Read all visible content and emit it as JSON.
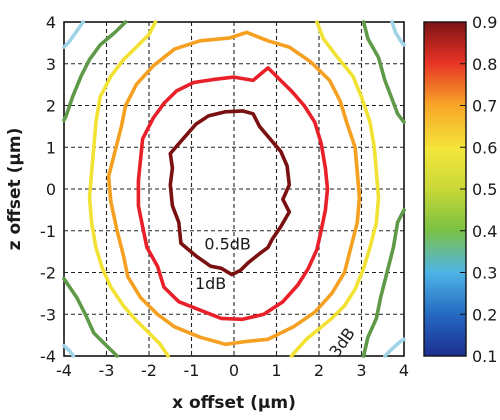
{
  "chart_data": {
    "type": "contour",
    "xlabel": "x offset (µm)",
    "ylabel": "z offset (µm)",
    "xlim": [
      -4,
      4
    ],
    "ylim": [
      -4,
      4
    ],
    "xticks": [
      -4,
      -3,
      -2,
      -1,
      0,
      1,
      2,
      3,
      4
    ],
    "yticks": [
      -4,
      -3,
      -2,
      -1,
      0,
      1,
      2,
      3,
      4
    ],
    "grid": "dashed",
    "colorbar": {
      "min": 0.1,
      "max": 0.9,
      "ticks": [
        0.1,
        0.2,
        0.3,
        0.4,
        0.5,
        0.6,
        0.7,
        0.8,
        0.9
      ],
      "colormap": "jet"
    },
    "contours": [
      {
        "level": 0.89,
        "color": "#7a1010",
        "points": [
          [
            -0.2,
            1.85
          ],
          [
            0.2,
            1.87
          ],
          [
            0.45,
            1.8
          ],
          [
            0.6,
            1.5
          ],
          [
            0.85,
            1.2
          ],
          [
            1.1,
            0.9
          ],
          [
            1.25,
            0.55
          ],
          [
            1.3,
            0.1
          ],
          [
            1.15,
            -0.25
          ],
          [
            1.3,
            -0.55
          ],
          [
            1.1,
            -0.9
          ],
          [
            0.9,
            -1.2
          ],
          [
            0.8,
            -1.4
          ],
          [
            0.6,
            -1.55
          ],
          [
            0.35,
            -1.75
          ],
          [
            0.15,
            -1.95
          ],
          [
            -0.05,
            -2.05
          ],
          [
            -0.3,
            -1.9
          ],
          [
            -0.55,
            -1.85
          ],
          [
            -0.9,
            -1.6
          ],
          [
            -1.25,
            -1.3
          ],
          [
            -1.3,
            -0.8
          ],
          [
            -1.45,
            -0.4
          ],
          [
            -1.5,
            0.1
          ],
          [
            -1.45,
            0.5
          ],
          [
            -1.5,
            0.85
          ],
          [
            -1.2,
            1.2
          ],
          [
            -0.9,
            1.55
          ],
          [
            -0.6,
            1.75
          ]
        ]
      },
      {
        "level": 0.79,
        "color": "#e8202a",
        "points": [
          [
            0,
            2.68
          ],
          [
            0.45,
            2.6
          ],
          [
            0.8,
            2.9
          ],
          [
            1.05,
            2.65
          ],
          [
            1.35,
            2.35
          ],
          [
            1.65,
            2.0
          ],
          [
            1.9,
            1.6
          ],
          [
            2.05,
            1.1
          ],
          [
            2.15,
            0.5
          ],
          [
            2.2,
            0
          ],
          [
            2.15,
            -0.5
          ],
          [
            2.05,
            -1.0
          ],
          [
            1.95,
            -1.45
          ],
          [
            1.75,
            -1.9
          ],
          [
            1.5,
            -2.3
          ],
          [
            1.15,
            -2.7
          ],
          [
            0.7,
            -3.0
          ],
          [
            0.2,
            -3.12
          ],
          [
            -0.3,
            -3.1
          ],
          [
            -0.8,
            -2.9
          ],
          [
            -1.3,
            -2.7
          ],
          [
            -1.65,
            -2.35
          ],
          [
            -1.8,
            -1.85
          ],
          [
            -2.05,
            -1.4
          ],
          [
            -2.15,
            -0.9
          ],
          [
            -2.25,
            -0.4
          ],
          [
            -2.25,
            0.2
          ],
          [
            -2.2,
            0.7
          ],
          [
            -2.15,
            1.2
          ],
          [
            -1.9,
            1.7
          ],
          [
            -1.65,
            2.05
          ],
          [
            -1.35,
            2.35
          ],
          [
            -0.95,
            2.55
          ],
          [
            -0.5,
            2.62
          ]
        ]
      },
      {
        "level": 0.69,
        "color": "#f5a020",
        "points": [
          [
            -0.1,
            3.62
          ],
          [
            0.3,
            3.75
          ],
          [
            0.8,
            3.55
          ],
          [
            1.3,
            3.4
          ],
          [
            1.8,
            3.05
          ],
          [
            2.25,
            2.6
          ],
          [
            2.5,
            2.1
          ],
          [
            2.65,
            1.6
          ],
          [
            2.85,
            1.0
          ],
          [
            2.9,
            0.4
          ],
          [
            2.95,
            -0.2
          ],
          [
            2.9,
            -0.8
          ],
          [
            2.75,
            -1.4
          ],
          [
            2.6,
            -2.0
          ],
          [
            2.3,
            -2.5
          ],
          [
            1.9,
            -2.95
          ],
          [
            1.4,
            -3.3
          ],
          [
            0.8,
            -3.6
          ],
          [
            0.3,
            -3.65
          ],
          [
            -0.2,
            -3.72
          ],
          [
            -0.8,
            -3.55
          ],
          [
            -1.4,
            -3.3
          ],
          [
            -1.8,
            -3.0
          ],
          [
            -2.2,
            -2.6
          ],
          [
            -2.5,
            -2.1
          ],
          [
            -2.6,
            -1.6
          ],
          [
            -2.75,
            -1.0
          ],
          [
            -2.9,
            -0.3
          ],
          [
            -2.95,
            0.3
          ],
          [
            -2.8,
            0.9
          ],
          [
            -2.65,
            1.5
          ],
          [
            -2.55,
            2.0
          ],
          [
            -2.3,
            2.5
          ],
          [
            -1.9,
            2.95
          ],
          [
            -1.4,
            3.35
          ],
          [
            -0.8,
            3.55
          ]
        ]
      },
      {
        "level": 0.58,
        "color": "#f2e233",
        "closed": false,
        "points": [
          [
            1.95,
            4
          ],
          [
            2.1,
            3.6
          ],
          [
            2.4,
            3.2
          ],
          [
            2.8,
            2.7
          ],
          [
            3.0,
            2.2
          ],
          [
            3.2,
            1.6
          ],
          [
            3.3,
            1.0
          ],
          [
            3.35,
            0.4
          ],
          [
            3.4,
            -0.2
          ],
          [
            3.35,
            -0.8
          ],
          [
            3.2,
            -1.4
          ],
          [
            3.05,
            -1.9
          ],
          [
            2.85,
            -2.4
          ],
          [
            2.6,
            -2.8
          ],
          [
            2.3,
            -3.1
          ],
          [
            2.0,
            -3.35
          ],
          [
            1.7,
            -3.6
          ],
          [
            1.35,
            -4.0
          ]
        ]
      },
      {
        "level": 0.58,
        "color": "#f2e233",
        "closed": false,
        "points": [
          [
            -1.85,
            4
          ],
          [
            -2.0,
            3.7
          ],
          [
            -2.3,
            3.4
          ],
          [
            -2.6,
            3.1
          ],
          [
            -2.9,
            2.7
          ],
          [
            -3.15,
            2.2
          ],
          [
            -3.25,
            1.6
          ],
          [
            -3.3,
            1.0
          ],
          [
            -3.35,
            0.4
          ],
          [
            -3.4,
            -0.2
          ],
          [
            -3.35,
            -0.8
          ],
          [
            -3.25,
            -1.4
          ],
          [
            -3.1,
            -1.9
          ],
          [
            -2.9,
            -2.35
          ],
          [
            -2.6,
            -2.8
          ],
          [
            -2.3,
            -3.15
          ],
          [
            -2.05,
            -3.4
          ],
          [
            -1.75,
            -3.7
          ],
          [
            -1.55,
            -4.0
          ]
        ]
      },
      {
        "level": 0.42,
        "color": "#5f9a48",
        "closed": false,
        "points": [
          [
            3.05,
            4
          ],
          [
            3.15,
            3.6
          ],
          [
            3.4,
            3.15
          ],
          [
            3.55,
            2.6
          ],
          [
            3.7,
            2.2
          ],
          [
            3.85,
            1.8
          ],
          [
            4.0,
            1.6
          ]
        ]
      },
      {
        "level": 0.42,
        "color": "#5f9a48",
        "closed": false,
        "points": [
          [
            -2.55,
            4
          ],
          [
            -2.8,
            3.75
          ],
          [
            -3.15,
            3.45
          ],
          [
            -3.4,
            3.1
          ],
          [
            -3.6,
            2.7
          ],
          [
            -3.8,
            2.2
          ],
          [
            -3.95,
            1.75
          ],
          [
            -4.0,
            1.65
          ]
        ]
      },
      {
        "level": 0.42,
        "color": "#5f9a48",
        "closed": false,
        "points": [
          [
            4.0,
            -0.5
          ],
          [
            3.85,
            -0.8
          ],
          [
            3.75,
            -1.4
          ],
          [
            3.6,
            -2.0
          ],
          [
            3.45,
            -2.6
          ],
          [
            3.35,
            -3.1
          ],
          [
            3.15,
            -3.55
          ],
          [
            3.05,
            -4.0
          ]
        ]
      },
      {
        "level": 0.42,
        "color": "#5f9a48",
        "closed": false,
        "points": [
          [
            -4.0,
            -2.15
          ],
          [
            -3.7,
            -2.6
          ],
          [
            -3.5,
            -3.0
          ],
          [
            -3.3,
            -3.45
          ],
          [
            -3.0,
            -3.75
          ],
          [
            -2.75,
            -4.0
          ]
        ]
      },
      {
        "level": 0.3,
        "color": "#9fd4e6",
        "closed": false,
        "points": [
          [
            3.72,
            4.0
          ],
          [
            3.8,
            3.75
          ],
          [
            3.92,
            3.55
          ],
          [
            4.0,
            3.45
          ]
        ]
      },
      {
        "level": 0.3,
        "color": "#9fd4e6",
        "closed": false,
        "points": [
          [
            -3.55,
            4.0
          ],
          [
            -3.72,
            3.75
          ],
          [
            -3.9,
            3.5
          ],
          [
            -4.0,
            3.4
          ]
        ]
      },
      {
        "level": 0.3,
        "color": "#9fd4e6",
        "closed": false,
        "points": [
          [
            3.55,
            -4.0
          ],
          [
            3.75,
            -3.8
          ],
          [
            3.92,
            -3.65
          ],
          [
            4.0,
            -3.6
          ]
        ]
      },
      {
        "level": 0.3,
        "color": "#9fd4e6",
        "closed": false,
        "points": [
          [
            -4.0,
            -3.75
          ],
          [
            -3.85,
            -3.9
          ],
          [
            -3.78,
            -4.0
          ]
        ]
      }
    ],
    "annotations": [
      {
        "text": "0.5dB",
        "x": -0.15,
        "y": -1.45,
        "rotate": 0
      },
      {
        "text": "1dB",
        "x": -0.55,
        "y": -2.4,
        "rotate": 0
      },
      {
        "text": "3dB",
        "x": 2.65,
        "y": -3.75,
        "rotate": -55
      }
    ]
  }
}
